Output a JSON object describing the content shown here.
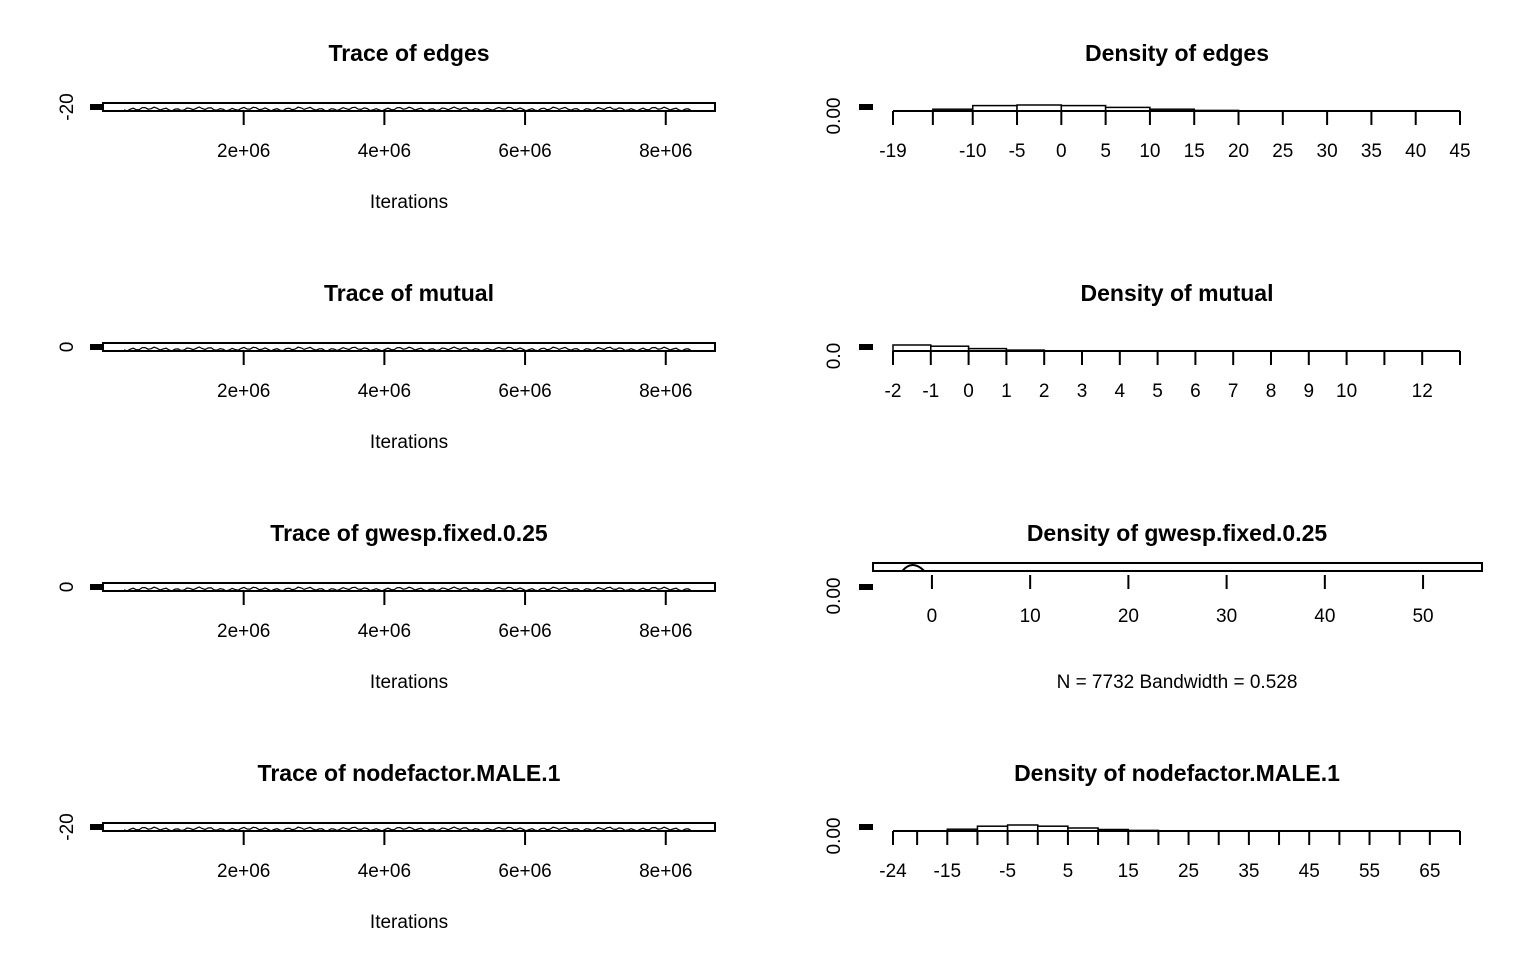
{
  "chart_data": [
    {
      "type": "line",
      "title": "Trace of edges",
      "xlabel": "Iterations",
      "ylabel": "",
      "x_ticks": [
        2000000,
        4000000,
        6000000,
        8000000
      ],
      "x_tick_labels": [
        "2e+06",
        "4e+06",
        "6e+06",
        "8e+06"
      ],
      "xlim": [
        0,
        8700000
      ],
      "y_ticks": [
        -20
      ],
      "y_tick_labels": [
        "-20"
      ],
      "series": [
        {
          "x_range": [
            300000,
            8400000
          ],
          "level": -20
        }
      ]
    },
    {
      "type": "bar",
      "title": "Density of edges",
      "xlabel": "",
      "ylabel": "",
      "x_tick_labels": [
        "-19",
        "-10",
        "-5",
        "0",
        "5",
        "10",
        "15",
        "20",
        "25",
        "30",
        "35",
        "40",
        "45"
      ],
      "x_ticks": [
        -19,
        -14.5,
        -10,
        -5,
        0,
        5,
        10,
        15,
        20,
        25,
        30,
        35,
        40,
        45
      ],
      "xlim": [
        -19,
        45
      ],
      "y_tick_labels": [
        "0.00"
      ],
      "bins": [
        -14.5,
        -10,
        -5,
        0,
        5,
        10,
        15,
        20
      ],
      "heights": [
        0.3,
        0.9,
        1.0,
        0.9,
        0.6,
        0.3,
        0.1
      ]
    },
    {
      "type": "line",
      "title": "Trace of mutual",
      "xlabel": "Iterations",
      "ylabel": "",
      "x_ticks": [
        2000000,
        4000000,
        6000000,
        8000000
      ],
      "x_tick_labels": [
        "2e+06",
        "4e+06",
        "6e+06",
        "8e+06"
      ],
      "xlim": [
        0,
        8700000
      ],
      "y_ticks": [
        0
      ],
      "y_tick_labels": [
        "0"
      ],
      "series": [
        {
          "x_range": [
            300000,
            8400000
          ],
          "level": 0
        }
      ]
    },
    {
      "type": "bar",
      "title": "Density of mutual",
      "xlabel": "",
      "ylabel": "",
      "x_tick_labels": [
        "-2",
        "-1",
        "0",
        "1",
        "2",
        "3",
        "4",
        "5",
        "6",
        "7",
        "8",
        "9",
        "10",
        "12"
      ],
      "x_ticks": [
        -2,
        -1,
        0,
        1,
        2,
        3,
        4,
        5,
        6,
        7,
        8,
        9,
        10,
        11,
        12,
        13
      ],
      "xlim": [
        -2,
        13
      ],
      "y_tick_labels": [
        "0.0"
      ],
      "bins": [
        -2,
        -1,
        0,
        1,
        2
      ],
      "heights": [
        1.0,
        0.8,
        0.4,
        0.15
      ]
    },
    {
      "type": "line",
      "title": "Trace of gwesp.fixed.0.25",
      "xlabel": "Iterations",
      "ylabel": "",
      "x_ticks": [
        2000000,
        4000000,
        6000000,
        8000000
      ],
      "x_tick_labels": [
        "2e+06",
        "4e+06",
        "6e+06",
        "8e+06"
      ],
      "xlim": [
        0,
        8700000
      ],
      "y_ticks": [
        0
      ],
      "y_tick_labels": [
        "0"
      ],
      "series": [
        {
          "x_range": [
            300000,
            8400000
          ],
          "level": 0
        }
      ]
    },
    {
      "type": "line",
      "title": "Density of gwesp.fixed.0.25",
      "xlabel": "N = 7732   Bandwidth = 0.528",
      "ylabel": "",
      "x_ticks": [
        0,
        10,
        20,
        30,
        40,
        50
      ],
      "x_tick_labels": [
        "0",
        "10",
        "20",
        "30",
        "40",
        "50"
      ],
      "xlim": [
        -6,
        56
      ],
      "y_tick_labels": [
        "0.00"
      ],
      "density_peak_x": -2
    },
    {
      "type": "line",
      "title": "Trace of nodefactor.MALE.1",
      "xlabel": "Iterations",
      "ylabel": "",
      "x_ticks": [
        2000000,
        4000000,
        6000000,
        8000000
      ],
      "x_tick_labels": [
        "2e+06",
        "4e+06",
        "6e+06",
        "8e+06"
      ],
      "xlim": [
        0,
        8700000
      ],
      "y_ticks": [
        -20
      ],
      "y_tick_labels": [
        "-20"
      ],
      "series": [
        {
          "x_range": [
            300000,
            8400000
          ],
          "level": -20
        }
      ]
    },
    {
      "type": "bar",
      "title": "Density of nodefactor.MALE.1",
      "xlabel": "",
      "ylabel": "",
      "x_tick_labels": [
        "-24",
        "-15",
        "-5",
        "5",
        "15",
        "25",
        "35",
        "45",
        "55",
        "65"
      ],
      "x_ticks": [
        -24,
        -20,
        -15,
        -10,
        -5,
        0,
        5,
        10,
        15,
        20,
        25,
        30,
        35,
        40,
        45,
        50,
        55,
        60,
        65,
        70
      ],
      "x_tick_label_values": [
        -24,
        -15,
        -5,
        5,
        15,
        25,
        35,
        45,
        55,
        65
      ],
      "xlim": [
        -24,
        70
      ],
      "y_tick_labels": [
        "0.00"
      ],
      "bins": [
        -15,
        -10,
        -5,
        0,
        5,
        10,
        15,
        20
      ],
      "heights": [
        0.3,
        0.8,
        1.0,
        0.8,
        0.5,
        0.25,
        0.1
      ]
    }
  ]
}
